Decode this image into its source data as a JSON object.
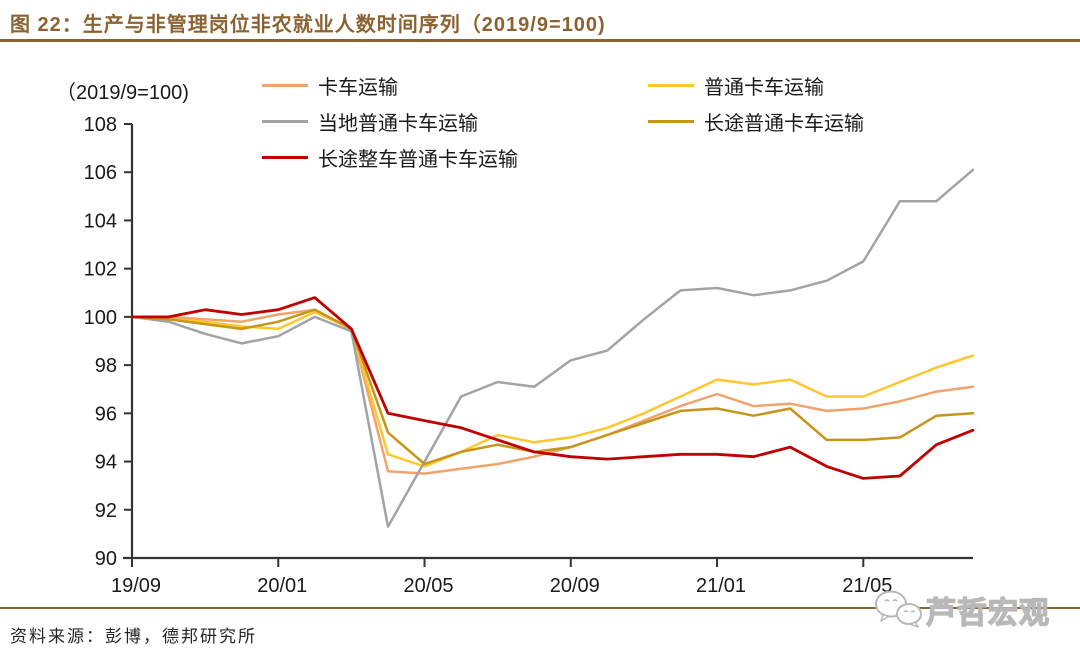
{
  "header": {
    "title": "图 22：生产与非管理岗位非农就业人数时间序列（2019/9=100)"
  },
  "chart_data": {
    "type": "line",
    "unit_label": "（2019/9=100)",
    "ylim": [
      90,
      108
    ],
    "ytick_step": 2,
    "grid": false,
    "legend_position": "top",
    "x_tick_labels": [
      "19/09",
      "20/01",
      "20/05",
      "20/09",
      "21/01",
      "21/05"
    ],
    "categories": [
      "19/09",
      "19/10",
      "19/11",
      "19/12",
      "20/01",
      "20/02",
      "20/03",
      "20/04",
      "20/05",
      "20/06",
      "20/07",
      "20/08",
      "20/09",
      "20/10",
      "20/11",
      "20/12",
      "21/01",
      "21/02",
      "21/03",
      "21/04",
      "21/05",
      "21/06",
      "21/07",
      "21/08"
    ],
    "series": [
      {
        "name": "卡车运输",
        "color": "#F2A26B",
        "values": [
          100,
          100,
          99.9,
          99.8,
          100.1,
          100.3,
          99.5,
          93.6,
          93.5,
          93.7,
          93.9,
          94.2,
          94.6,
          95.1,
          95.7,
          96.3,
          96.8,
          96.3,
          96.4,
          96.1,
          96.2,
          96.5,
          96.9,
          97.1
        ]
      },
      {
        "name": "普通卡车运输",
        "color": "#FFC62E",
        "values": [
          100,
          99.9,
          99.8,
          99.6,
          99.5,
          100.2,
          99.5,
          94.3,
          93.8,
          94.4,
          95.1,
          94.8,
          95.0,
          95.4,
          96.0,
          96.7,
          97.4,
          97.2,
          97.4,
          96.7,
          96.7,
          97.3,
          97.9,
          98.4
        ]
      },
      {
        "name": "当地普通卡车运输",
        "color": "#A3A3A3",
        "values": [
          100,
          99.8,
          99.3,
          98.9,
          99.2,
          100.0,
          99.4,
          91.3,
          94.0,
          96.7,
          97.3,
          97.1,
          98.2,
          98.6,
          99.9,
          101.1,
          101.2,
          100.9,
          101.1,
          101.5,
          102.3,
          104.8,
          104.8,
          106.1
        ]
      },
      {
        "name": "长途普通卡车运输",
        "color": "#C6951A",
        "values": [
          100,
          99.9,
          99.7,
          99.5,
          99.8,
          100.3,
          99.5,
          95.2,
          93.9,
          94.4,
          94.7,
          94.4,
          94.6,
          95.1,
          95.6,
          96.1,
          96.2,
          95.9,
          96.2,
          94.9,
          94.9,
          95.0,
          95.9,
          96.0
        ]
      },
      {
        "name": "长途整车普通卡车运输",
        "color": "#C00000",
        "values": [
          100,
          100,
          100.3,
          100.1,
          100.3,
          100.8,
          99.5,
          96.0,
          95.7,
          95.4,
          94.9,
          94.4,
          94.2,
          94.1,
          94.2,
          94.3,
          94.3,
          94.2,
          94.6,
          93.8,
          93.3,
          93.4,
          94.7,
          95.3
        ]
      }
    ],
    "axis_color": "#333333",
    "title_color": "#8B6332"
  },
  "footer": {
    "source": "资料来源：彭博，德邦研究所",
    "watermark": "芦哲宏观"
  }
}
